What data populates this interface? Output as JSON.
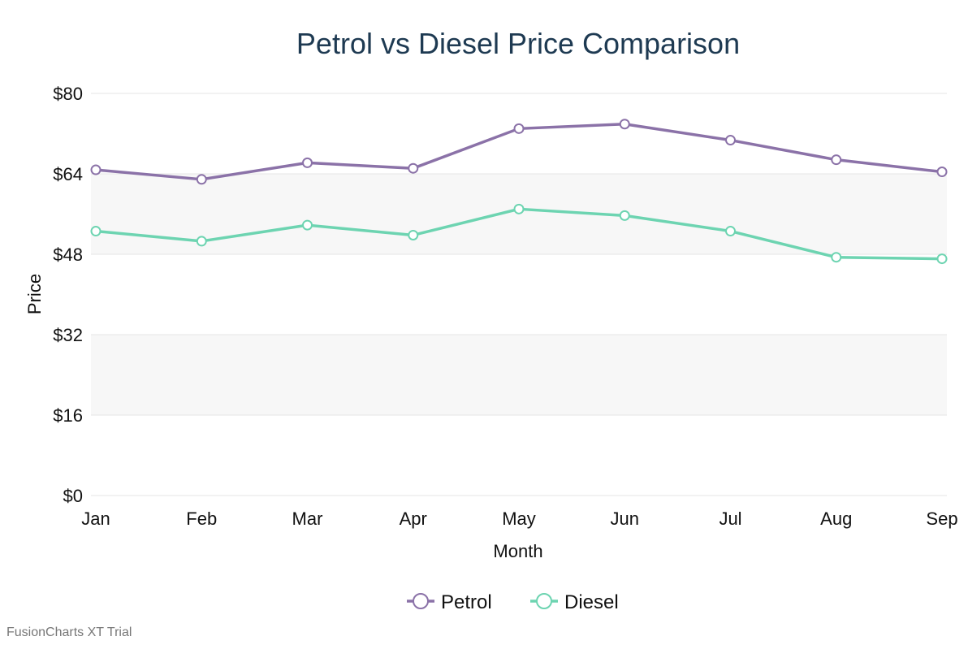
{
  "chart_data": {
    "type": "line",
    "title": "Petrol vs Diesel Price Comparison",
    "xlabel": "Month",
    "ylabel": "Price",
    "categories": [
      "Jan",
      "Feb",
      "Mar",
      "Apr",
      "May",
      "Jun",
      "Jul",
      "Aug",
      "Sep"
    ],
    "series": [
      {
        "name": "Petrol",
        "color": "#8b72a8",
        "values": [
          64.8,
          62.9,
          66.2,
          65.1,
          73.0,
          73.9,
          70.7,
          66.8,
          64.4
        ]
      },
      {
        "name": "Diesel",
        "color": "#6dd4b1",
        "values": [
          52.6,
          50.6,
          53.8,
          51.8,
          57.0,
          55.7,
          52.6,
          47.4,
          47.1
        ]
      }
    ],
    "ylim": [
      0,
      80
    ],
    "yticks": [
      0,
      16,
      32,
      48,
      64,
      80
    ],
    "ytick_labels": [
      "$0",
      "$16",
      "$32",
      "$48",
      "$64",
      "$80"
    ],
    "grid": true,
    "legend_position": "bottom-center"
  },
  "watermark": "FusionCharts XT Trial"
}
